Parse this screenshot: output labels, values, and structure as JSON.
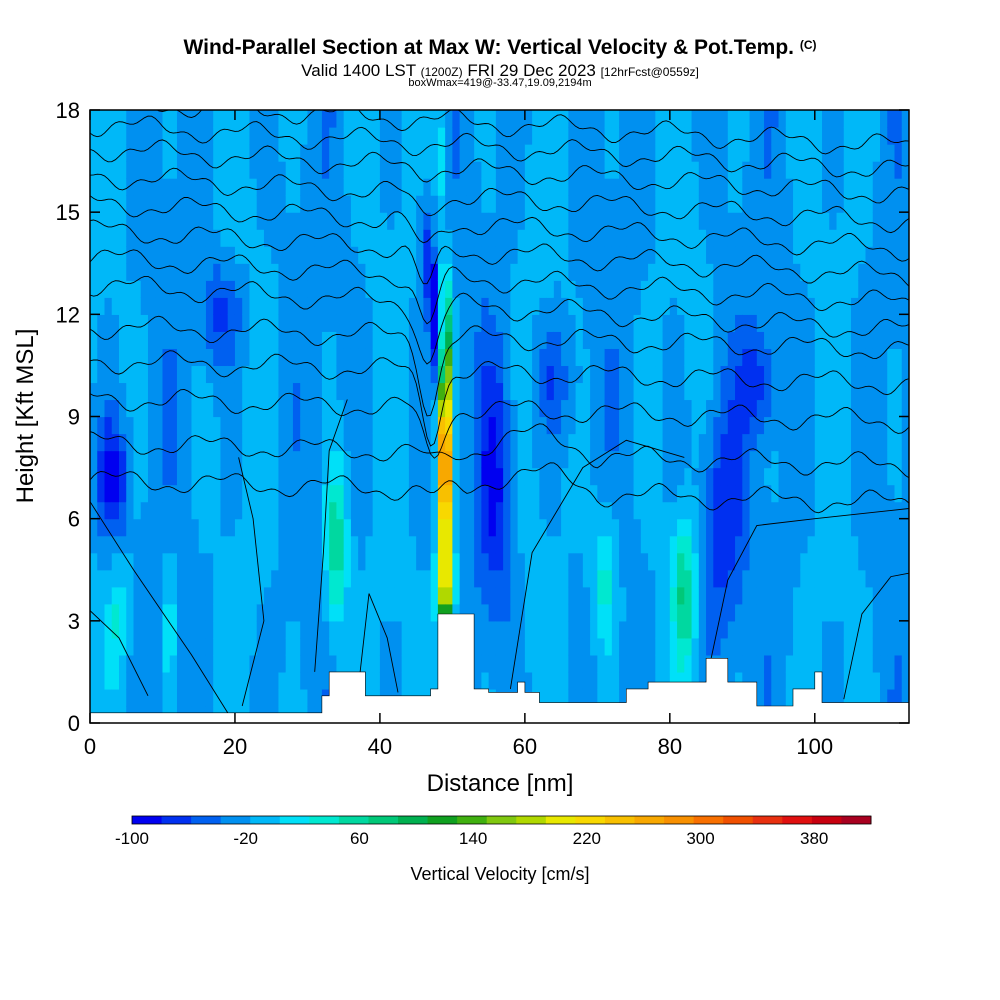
{
  "title": {
    "main": "Wind-Parallel Section at Max W: Vertical Velocity & Pot.Temp.",
    "copyright": "(C)",
    "valid_lst": "Valid 1400 LST",
    "valid_utc": "(1200Z)",
    "valid_date": "FRI 29 Dec 2023",
    "forecast": "[12hrFcst@0559z]",
    "boxwmax": "boxWmax=419@-33.47,19.09,2194m"
  },
  "colors": {
    "background": "#ffffff",
    "terrain": "#ffffff",
    "contour": "#000000"
  },
  "chart_data": {
    "type": "heatmap",
    "xlabel": "Distance [nm]",
    "ylabel": "Height [Kft MSL]",
    "xlim": [
      0,
      113
    ],
    "ylim": [
      0,
      18
    ],
    "xticks": [
      0,
      20,
      40,
      60,
      80,
      100
    ],
    "yticks": [
      0,
      3,
      6,
      9,
      12,
      15,
      18
    ],
    "colorbar": {
      "label": "Vertical Velocity [cm/s]",
      "min": -100,
      "max": 420,
      "step": 20,
      "tick_labels": [
        "-100",
        "-20",
        "60",
        "140",
        "220",
        "300",
        "380"
      ],
      "tick_values": [
        -100,
        -20,
        60,
        140,
        220,
        300,
        380
      ],
      "colors": [
        "#0000f0",
        "#0030f0",
        "#0060f0",
        "#0090f0",
        "#00b8f8",
        "#00e0f8",
        "#00e8d0",
        "#00d8a0",
        "#00c878",
        "#00b050",
        "#10a020",
        "#40b010",
        "#80c810",
        "#b0d800",
        "#e8e800",
        "#f8d800",
        "#f8c000",
        "#f8a800",
        "#f89000",
        "#f87000",
        "#f05000",
        "#e83010",
        "#e01010",
        "#c80010",
        "#a80020"
      ]
    },
    "features": [
      {
        "name": "max updraft",
        "x_nm": 49,
        "y_kft_range": [
          3.3,
          12
        ],
        "w_peak_cms": 419
      },
      {
        "name": "downdraft band",
        "x_nm": 47,
        "y_kft_range": [
          9,
          14.5
        ],
        "w_min_cms": -100
      },
      {
        "name": "updraft",
        "x_nm": 34,
        "y_kft_range": [
          1,
          8
        ],
        "w_peak_cms": 60
      },
      {
        "name": "updraft",
        "x_nm": 82,
        "y_kft_range": [
          1,
          6
        ],
        "w_peak_cms": 60
      },
      {
        "name": "downdraft",
        "x_nm": 3,
        "y_kft_range": [
          6,
          9
        ],
        "w_min_cms": -60
      }
    ],
    "terrain_profile": {
      "x": [
        0,
        23,
        32,
        33,
        36,
        38,
        47,
        48,
        50,
        53,
        55,
        59,
        60,
        62,
        70,
        74,
        77,
        85,
        88,
        92,
        97,
        100,
        101,
        113
      ],
      "y": [
        0.3,
        0.3,
        0.8,
        1.5,
        1.5,
        0.8,
        1.0,
        3.2,
        3.2,
        1.0,
        0.9,
        1.2,
        0.9,
        0.6,
        0.6,
        1.0,
        1.2,
        1.9,
        1.2,
        0.5,
        1.0,
        1.5,
        0.6,
        0.5
      ]
    },
    "theta_contour_base_kft": [
      6.8,
      7.9,
      9.2,
      10.3,
      11.3,
      12.2,
      13.0,
      13.8,
      14.6,
      15.4,
      16.2,
      16.9,
      17.6
    ]
  }
}
